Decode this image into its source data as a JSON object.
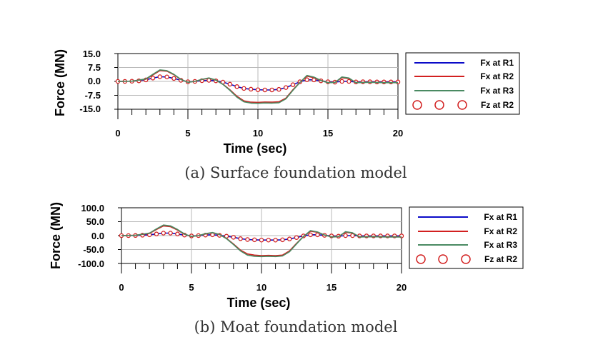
{
  "chart_data": [
    {
      "type": "line",
      "caption": "(a)  Surface foundation model",
      "xlabel": "Time (sec)",
      "ylabel": "Force (MN)",
      "xlim": [
        0,
        20
      ],
      "ylim": [
        -15,
        15
      ],
      "xticks": [
        0,
        5,
        10,
        15,
        20
      ],
      "yticks": [
        15,
        7.5,
        0,
        -7.5,
        -15
      ],
      "yticklabels": [
        "15.0",
        "7.5",
        "0.0",
        "-7.5",
        "-15.0"
      ],
      "legend": [
        "Fx at R1",
        "Fx at R2",
        "Fx at R3",
        "Fz at R2"
      ],
      "series": [
        {
          "name": "Fx at R1",
          "style": "line",
          "color": "#0a0ac8",
          "x": [
            0,
            1,
            2,
            2.5,
            3,
            3.5,
            4,
            4.5,
            5,
            5.5,
            6,
            6.5,
            7,
            7.5,
            8,
            8.5,
            9,
            9.5,
            10,
            10.5,
            11,
            11.5,
            12,
            12.5,
            13,
            13.5,
            14,
            14.5,
            15,
            15.5,
            16,
            16.5,
            17,
            18,
            19,
            20
          ],
          "y": [
            0,
            0.1,
            0.8,
            1.8,
            2.5,
            2.4,
            1.6,
            0.6,
            -0.2,
            0,
            0.4,
            0.6,
            0.3,
            -0.4,
            -1.5,
            -2.8,
            -3.8,
            -4.2,
            -4.5,
            -4.6,
            -4.6,
            -4.3,
            -3.3,
            -1.8,
            -0.2,
            0.9,
            0.8,
            0.3,
            -0.2,
            -0.4,
            0,
            0,
            -0.3,
            -0.2,
            -0.3,
            -0.3
          ]
        },
        {
          "name": "Fx at R2",
          "style": "line",
          "color": "#d22020",
          "x": [
            0,
            1,
            2,
            2.5,
            3,
            3.5,
            4,
            4.5,
            5,
            5.5,
            6,
            6.5,
            7,
            7.5,
            8,
            8.5,
            9,
            9.5,
            10,
            10.5,
            11,
            11.5,
            12,
            12.5,
            13,
            13.5,
            14,
            14.5,
            15,
            15.5,
            16,
            16.5,
            17,
            18,
            19,
            20
          ],
          "y": [
            0,
            0.1,
            1.2,
            3.5,
            5.8,
            5.5,
            3.6,
            1,
            -0.4,
            0,
            1,
            1.7,
            0.6,
            -1.5,
            -4.5,
            -8,
            -10.5,
            -11.2,
            -11.3,
            -11.1,
            -11.2,
            -11,
            -9,
            -4.5,
            -0.5,
            2.8,
            2,
            0.4,
            -0.6,
            -0.5,
            2,
            1.5,
            -0.6,
            -0.4,
            -0.6,
            -0.6
          ]
        },
        {
          "name": "Fx at R3",
          "style": "line",
          "color": "#4a8a62",
          "x": [
            0,
            1,
            2,
            2.5,
            3,
            3.5,
            4,
            4.5,
            5,
            5.5,
            6,
            6.5,
            7,
            7.5,
            8,
            8.5,
            9,
            9.5,
            10,
            10.5,
            11,
            11.5,
            12,
            12.5,
            13,
            13.5,
            14,
            14.5,
            15,
            15.5,
            16,
            16.5,
            17,
            18,
            19,
            20
          ],
          "y": [
            0,
            0.1,
            1.3,
            3.8,
            6.2,
            5.8,
            3.8,
            1.1,
            -0.5,
            0,
            1.1,
            1.9,
            0.7,
            -1.6,
            -4.8,
            -8.5,
            -11,
            -11.7,
            -11.8,
            -11.6,
            -11.7,
            -11.5,
            -9.4,
            -4.8,
            -0.6,
            3.2,
            2.3,
            0.5,
            -0.7,
            -0.6,
            2.4,
            1.8,
            -0.7,
            -0.5,
            -0.7,
            -0.7
          ]
        },
        {
          "name": "Fz at R2",
          "style": "markers",
          "color": "#d22020",
          "x": [
            0,
            0.5,
            1,
            1.5,
            2,
            2.5,
            3,
            3.5,
            4,
            4.5,
            5,
            5.5,
            6,
            6.5,
            7,
            7.5,
            8,
            8.5,
            9,
            9.5,
            10,
            10.5,
            11,
            11.5,
            12,
            12.5,
            13,
            13.5,
            14,
            14.5,
            15,
            15.5,
            16,
            16.5,
            17,
            17.5,
            18,
            18.5,
            19,
            19.5,
            20
          ],
          "y": [
            0,
            0,
            0.1,
            0.3,
            0.8,
            1.8,
            2.5,
            2.4,
            1.6,
            0.6,
            -0.2,
            0,
            0.4,
            0.6,
            0.3,
            -0.4,
            -1.5,
            -2.8,
            -3.8,
            -4.2,
            -4.5,
            -4.6,
            -4.6,
            -4.3,
            -3.3,
            -1.8,
            -0.2,
            0.9,
            0.8,
            0.3,
            -0.2,
            -0.4,
            0,
            0,
            -0.3,
            -0.2,
            -0.2,
            -0.3,
            -0.3,
            -0.3,
            -0.3
          ]
        }
      ]
    },
    {
      "type": "line",
      "caption": "(b)  Moat foundation model",
      "xlabel": "Time (sec)",
      "ylabel": "Force (MN)",
      "xlim": [
        0,
        20
      ],
      "ylim": [
        -100,
        100
      ],
      "xticks": [
        0,
        5,
        10,
        15,
        20
      ],
      "yticks": [
        100,
        50,
        0,
        -50,
        -100
      ],
      "yticklabels": [
        "100.0",
        "50.0",
        "0.0",
        "-50.0",
        "-100.0"
      ],
      "legend": [
        "Fx at R1",
        "Fx at R2",
        "Fx at R3",
        "Fz at R2"
      ],
      "series": [
        {
          "name": "Fx at R1",
          "style": "line",
          "color": "#0a0ac8",
          "x": [
            0,
            1,
            2,
            2.5,
            3,
            3.5,
            4,
            4.5,
            5,
            5.5,
            6,
            6.5,
            7,
            7.5,
            8,
            8.5,
            9,
            9.5,
            10,
            10.5,
            11,
            11.5,
            12,
            12.5,
            13,
            13.5,
            14,
            14.5,
            15,
            15.5,
            16,
            16.5,
            17,
            18,
            19,
            20
          ],
          "y": [
            0,
            0.5,
            3,
            6,
            9,
            9,
            6,
            2,
            -1,
            0,
            2,
            3,
            1,
            -2,
            -6,
            -11,
            -14,
            -15,
            -16,
            -16,
            -16,
            -15,
            -12,
            -7,
            -1,
            3,
            3,
            1,
            -1,
            -2,
            0,
            0,
            -1,
            -1,
            -1,
            -1
          ]
        },
        {
          "name": "Fx at R2",
          "style": "line",
          "color": "#d22020",
          "x": [
            0,
            1,
            2,
            2.5,
            3,
            3.5,
            4,
            4.5,
            5,
            5.5,
            6,
            6.5,
            7,
            7.5,
            8,
            8.5,
            9,
            9.5,
            10,
            10.5,
            11,
            11.5,
            12,
            12.5,
            13,
            13.5,
            14,
            14.5,
            15,
            15.5,
            16,
            16.5,
            17,
            18,
            19,
            20
          ],
          "y": [
            0,
            1,
            8,
            22,
            35,
            32,
            20,
            5,
            -3,
            0,
            6,
            10,
            4,
            -10,
            -30,
            -52,
            -66,
            -70,
            -72,
            -71,
            -72,
            -70,
            -55,
            -28,
            -3,
            16,
            12,
            2,
            -4,
            -3,
            12,
            9,
            -4,
            -3,
            -4,
            -4
          ]
        },
        {
          "name": "Fx at R3",
          "style": "line",
          "color": "#4a8a62",
          "x": [
            0,
            1,
            2,
            2.5,
            3,
            3.5,
            4,
            4.5,
            5,
            5.5,
            6,
            6.5,
            7,
            7.5,
            8,
            8.5,
            9,
            9.5,
            10,
            10.5,
            11,
            11.5,
            12,
            12.5,
            13,
            13.5,
            14,
            14.5,
            15,
            15.5,
            16,
            16.5,
            17,
            18,
            19,
            20
          ],
          "y": [
            0,
            1,
            9,
            24,
            38,
            35,
            22,
            6,
            -3,
            0,
            7,
            11,
            4,
            -11,
            -32,
            -55,
            -70,
            -74,
            -75,
            -74,
            -75,
            -73,
            -58,
            -30,
            -3,
            18,
            13,
            2,
            -5,
            -4,
            14,
            10,
            -5,
            -4,
            -5,
            -5
          ]
        },
        {
          "name": "Fz at R2",
          "style": "markers",
          "color": "#d22020",
          "x": [
            0,
            0.5,
            1,
            1.5,
            2,
            2.5,
            3,
            3.5,
            4,
            4.5,
            5,
            5.5,
            6,
            6.5,
            7,
            7.5,
            8,
            8.5,
            9,
            9.5,
            10,
            10.5,
            11,
            11.5,
            12,
            12.5,
            13,
            13.5,
            14,
            14.5,
            15,
            15.5,
            16,
            16.5,
            17,
            17.5,
            18,
            18.5,
            19,
            19.5,
            20
          ],
          "y": [
            0,
            0,
            0.5,
            1.5,
            3,
            6,
            9,
            9,
            6,
            2,
            -1,
            0,
            2,
            3,
            1,
            -2,
            -6,
            -11,
            -14,
            -15,
            -16,
            -16,
            -16,
            -15,
            -12,
            -7,
            -1,
            3,
            3,
            1,
            -1,
            -2,
            0,
            0,
            -1,
            -1,
            -1,
            -1,
            -1,
            -1,
            -1
          ]
        }
      ]
    }
  ]
}
